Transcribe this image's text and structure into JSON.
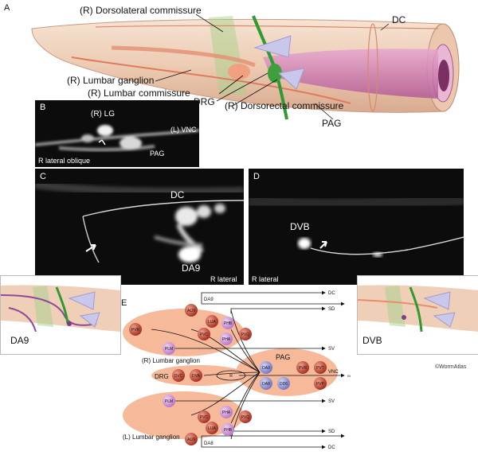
{
  "panel_a": {
    "letter": "A",
    "labels": {
      "dorsolateral": "(R) Dorsolateral commissure",
      "dc": "DC",
      "lumbar_ganglion": "(R) Lumbar ganglion",
      "lumbar_commissure": "(R) Lumbar commissure",
      "drg": "DRG",
      "dorsorectal": "(R) Dorsorectal commissure",
      "pag": "PAG"
    }
  },
  "panel_b": {
    "letter": "B",
    "lg": "(R) LG",
    "vnc": "(L) VNC",
    "pag": "PAG",
    "view": "R lateral oblique"
  },
  "panel_c": {
    "letter": "C",
    "dc": "DC",
    "da9": "DA9",
    "view": "R lateral"
  },
  "panel_d": {
    "letter": "D",
    "dvb": "DVB",
    "view": "R lateral"
  },
  "inset_left": {
    "label": "DA9"
  },
  "inset_right": {
    "label": "DVB"
  },
  "panel_e": {
    "letter": "E",
    "neurons": {
      "aln_top": "ALN",
      "lua_top": "LUA",
      "phb_top": "PHB",
      "pvr": "PVR",
      "pvc_top": "PVC",
      "pha_top": "PHA",
      "pvq_top": "PVQ",
      "plm_top": "PLM",
      "dvc": "DVC",
      "dva": "DVA",
      "r": "R",
      "da9n": "DA9",
      "pvr_pag": "PVR",
      "pvt": "PVT",
      "da8n": "DA8",
      "dd6": "DD6",
      "pvp": "PVP",
      "plm_bot": "PLM",
      "pvc_bot": "PVC",
      "pha_bot": "PHA",
      "pvq_bot": "PVQ",
      "lua_bot": "LUA",
      "phb_bot": "PHB",
      "aln_bot": "ALN"
    },
    "tracts": {
      "dc_top": "DC",
      "sd_top": "SD",
      "sv_top": "SV",
      "vnc": "VNC",
      "in": "IN",
      "sv_bot": "SV",
      "sd_bot": "SD",
      "dc_bot": "DC"
    },
    "labels": {
      "da9": "DA9",
      "da8": "DA8",
      "r_lg": "(R) Lumbar ganglion",
      "drg": "DRG",
      "pag": "PAG",
      "l_lg": "(L) Lumbar ganglion"
    }
  },
  "credit": "©WormAtlas",
  "colors": {
    "body": "#f1d7c2",
    "ganglion": "#f6b99a",
    "neuron_red": "#c0392b",
    "neuron_pink": "#c58ad0",
    "neuron_blue": "#8a8fd0",
    "commissure_green": "#3f9a3a",
    "intestine": "#c66aa6"
  }
}
